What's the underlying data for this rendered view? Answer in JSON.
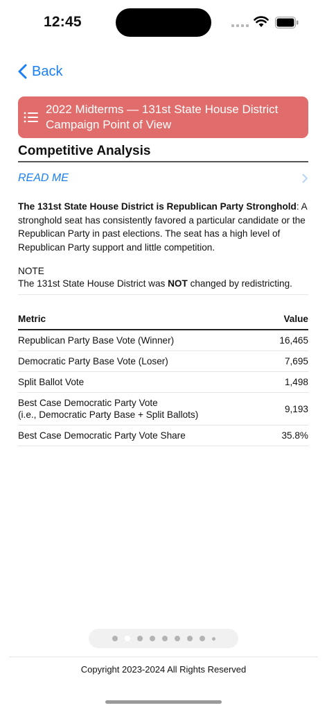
{
  "status_bar": {
    "time": "12:45"
  },
  "nav": {
    "back_label": "Back"
  },
  "banner": {
    "title_line1": "2022 Midterms — 131st State House District",
    "title_line2": "Campaign Point of View"
  },
  "section": {
    "heading": "Competitive Analysis",
    "read_me": "READ ME"
  },
  "description": {
    "bold_lead": "The 131st State House District is Republican Party Stronghold",
    "rest": ": A stronghold seat has consistently favored a particular candidate or the Republican Party in past elections. The seat has a high level of Republican Party support and little competition."
  },
  "note": {
    "title": "NOTE",
    "text_before": "The 131st State House District was ",
    "text_bold": "NOT",
    "text_after": " changed by redistricting."
  },
  "table": {
    "header_metric": "Metric",
    "header_value": "Value",
    "rows": [
      {
        "metric": "Republican Party Base Vote (Winner)",
        "value": "16,465"
      },
      {
        "metric": "Democratic Party Base Vote (Loser)",
        "value": "7,695"
      },
      {
        "metric": "Split Ballot Vote",
        "value": "1,498"
      },
      {
        "metric_line1": "Best Case Democratic Party Vote",
        "metric_line2": "(i.e., Democratic Party Base + Split Ballots)",
        "value": "9,193"
      },
      {
        "metric": "Best Case Democratic Party Vote Share",
        "value": "35.8%"
      }
    ]
  },
  "pager": {
    "total_pages": 9,
    "current_page": 2
  },
  "footer": {
    "copyright": "Copyright 2023-2024 All Rights Reserved"
  },
  "colors": {
    "accent": "#1a7ff2",
    "banner": "#e06d6b"
  }
}
